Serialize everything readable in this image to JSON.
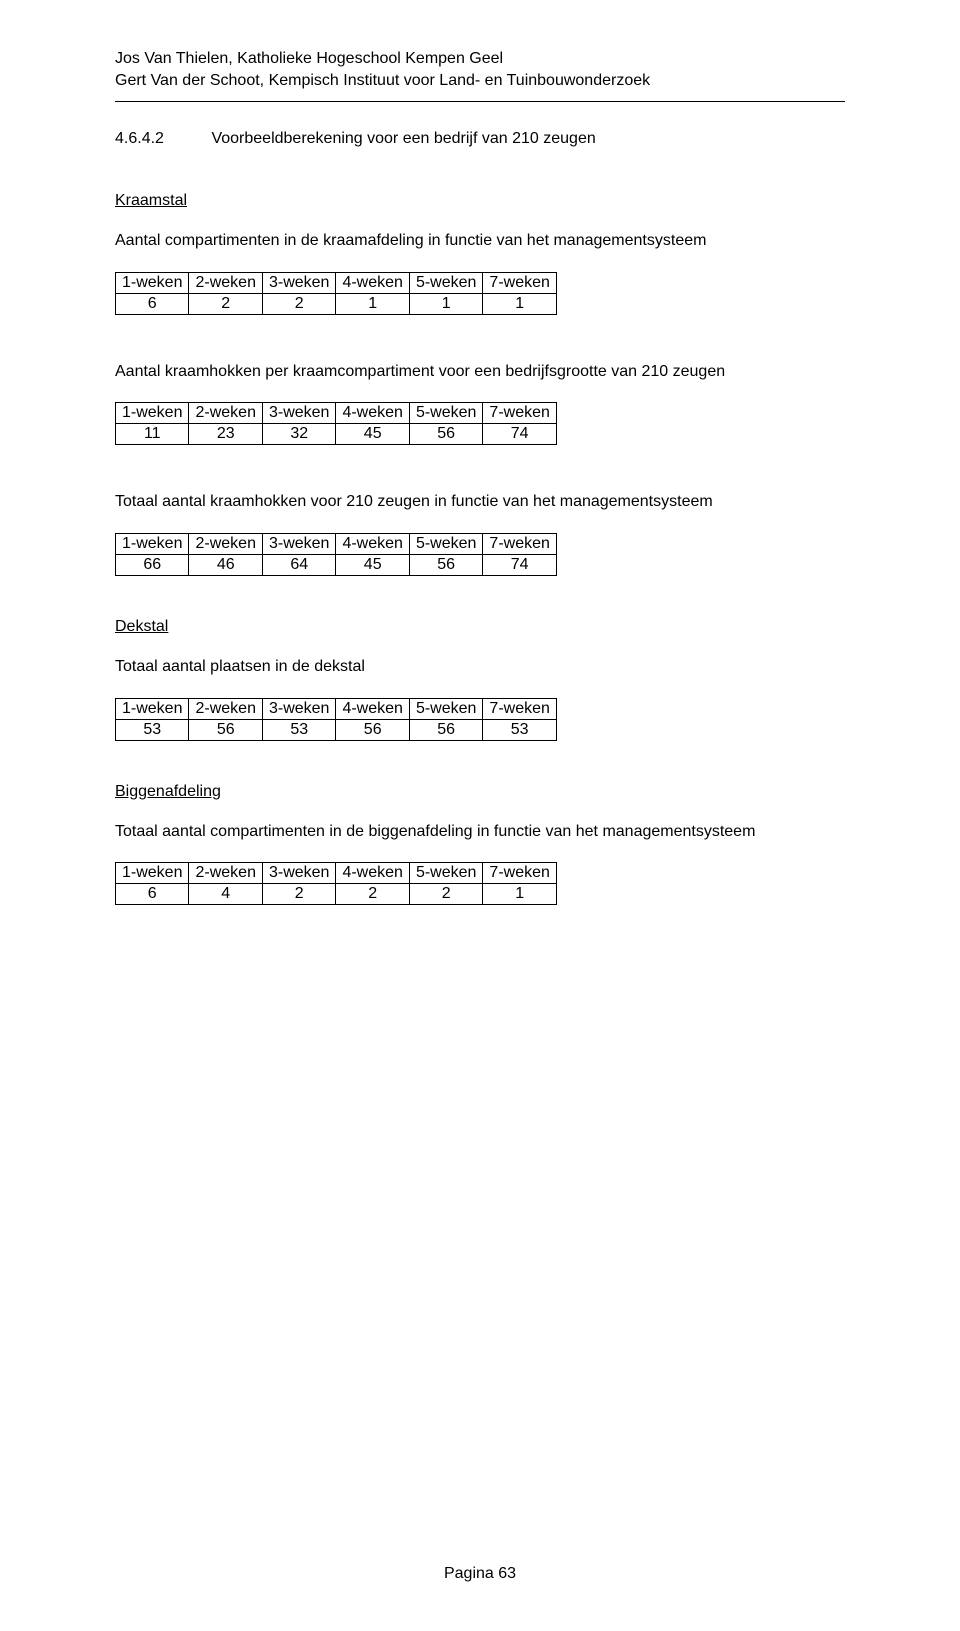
{
  "header": {
    "line1": "Jos Van Thielen, Katholieke Hogeschool Kempen Geel",
    "line2": "Gert Van der Schoot, Kempisch Instituut voor Land- en Tuinbouwonderzoek"
  },
  "section": {
    "number": "4.6.4.2",
    "title": "Voorbeeldberekening voor een bedrijf van 210 zeugen"
  },
  "kraamstal": {
    "heading": "Kraamstal",
    "table1": {
      "desc": "Aantal compartimenten in de kraamafdeling in functie van het managementsysteem",
      "columns": [
        "1-weken",
        "2-weken",
        "3-weken",
        "4-weken",
        "5-weken",
        "7-weken"
      ],
      "row": [
        "6",
        "2",
        "2",
        "1",
        "1",
        "1"
      ]
    },
    "table2": {
      "desc": "Aantal kraamhokken per kraamcompartiment voor een bedrijfsgrootte van 210 zeugen",
      "columns": [
        "1-weken",
        "2-weken",
        "3-weken",
        "4-weken",
        "5-weken",
        "7-weken"
      ],
      "row": [
        "11",
        "23",
        "32",
        "45",
        "56",
        "74"
      ]
    },
    "table3": {
      "desc": "Totaal aantal kraamhokken voor 210 zeugen in functie van het managementsysteem",
      "columns": [
        "1-weken",
        "2-weken",
        "3-weken",
        "4-weken",
        "5-weken",
        "7-weken"
      ],
      "row": [
        "66",
        "46",
        "64",
        "45",
        "56",
        "74"
      ]
    }
  },
  "dekstal": {
    "heading": "Dekstal",
    "table": {
      "desc": "Totaal aantal plaatsen in de dekstal",
      "columns": [
        "1-weken",
        "2-weken",
        "3-weken",
        "4-weken",
        "5-weken",
        "7-weken"
      ],
      "row": [
        "53",
        "56",
        "53",
        "56",
        "56",
        "53"
      ]
    }
  },
  "biggen": {
    "heading": "Biggenafdeling",
    "table": {
      "desc": "Totaal aantal compartimenten in de biggenafdeling in functie van het managementsysteem",
      "columns": [
        "1-weken",
        "2-weken",
        "3-weken",
        "4-weken",
        "5-weken",
        "7-weken"
      ],
      "row": [
        "6",
        "4",
        "2",
        "2",
        "2",
        "1"
      ]
    }
  },
  "footer": {
    "text": "Pagina 63"
  }
}
